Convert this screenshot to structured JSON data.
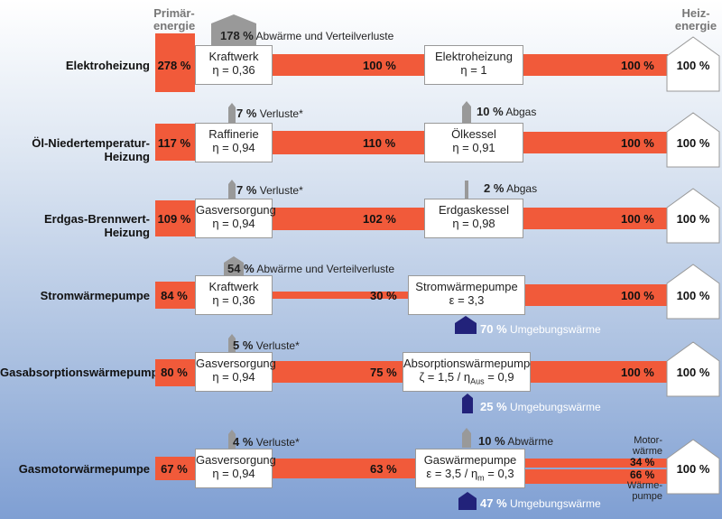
{
  "headers": {
    "primary": [
      "Primär-",
      "energie"
    ],
    "heat": [
      "Heiz-",
      "energie"
    ]
  },
  "colors": {
    "flow": "#f15a3a",
    "loss": "#999999",
    "ambient": "#22227a"
  },
  "rows": [
    {
      "label": "Elektroheizung",
      "primary_pct": "278 %",
      "box1": [
        "Kraftwerk",
        "η = 0,36"
      ],
      "mid_pct": "100 %",
      "loss1": {
        "value": "178 %",
        "text": "Abwärme und Verteilverluste"
      },
      "box2": [
        "Elektroheizung",
        "η = 1"
      ],
      "end_pct": "100 %",
      "house_pct": "100 %"
    },
    {
      "label": "Öl-Niedertemperatur-Heizung",
      "primary_pct": "117 %",
      "box1": [
        "Raffinerie",
        "η = 0,94"
      ],
      "mid_pct": "110 %",
      "loss1": {
        "value": "7 %",
        "text": "Verluste*"
      },
      "loss2": {
        "value": "10 %",
        "text": "Abgas"
      },
      "box2": [
        "Ölkessel",
        "η = 0,91"
      ],
      "end_pct": "100 %",
      "house_pct": "100 %"
    },
    {
      "label": "Erdgas-Brennwert-Heizung",
      "primary_pct": "109 %",
      "box1": [
        "Gasversorgung",
        "η = 0,94"
      ],
      "mid_pct": "102 %",
      "loss1": {
        "value": "7 %",
        "text": "Verluste*"
      },
      "loss2": {
        "value": "2 %",
        "text": "Abgas"
      },
      "box2": [
        "Erdgaskessel",
        "η = 0,98"
      ],
      "end_pct": "100 %",
      "house_pct": "100 %"
    },
    {
      "label": "Stromwärmepumpe",
      "primary_pct": "84 %",
      "box1": [
        "Kraftwerk",
        "η = 0,36"
      ],
      "mid_pct": "30 %",
      "loss1": {
        "value": "54 %",
        "text": "Abwärme und Verteilverluste"
      },
      "box2": [
        "Stromwärmepumpe",
        "ε = 3,3"
      ],
      "ambient": {
        "value": "70 %",
        "text": "Umgebungswärme"
      },
      "end_pct": "100 %",
      "house_pct": "100 %"
    },
    {
      "label": "Gasabsorptionswärmepumpe",
      "primary_pct": "80 %",
      "box1": [
        "Gasversorgung",
        "η = 0,94"
      ],
      "mid_pct": "75 %",
      "loss1": {
        "value": "5 %",
        "text": "Verluste*"
      },
      "box2_line1": "Absorptionswärmepumpe",
      "box2_line2": {
        "a": "ζ = 1,5 / η",
        "sub": "Aus",
        "b": " = 0,9"
      },
      "ambient": {
        "value": "25 %",
        "text": "Umgebungswärme"
      },
      "end_pct": "100 %",
      "house_pct": "100 %"
    },
    {
      "label": "Gasmotorwärmepumpe",
      "primary_pct": "67 %",
      "box1": [
        "Gasversorgung",
        "η = 0,94"
      ],
      "mid_pct": "63 %",
      "loss1": {
        "value": "4 %",
        "text": "Verluste*"
      },
      "loss2": {
        "value": "10 %",
        "text": "Abwärme"
      },
      "box2_line1": "Gaswärmepumpe",
      "box2_line2": {
        "a": "ε = 3,5 / η",
        "sub": "m",
        "b": " = 0,3"
      },
      "ambient": {
        "value": "47 %",
        "text": "Umgebungswärme"
      },
      "split_top_label": [
        "Motor-",
        "wärme"
      ],
      "split_top_pct": "34 %",
      "split_bottom_pct": "66 %",
      "split_bottom_label": [
        "Wärme-",
        "pumpe"
      ],
      "house_pct": "100 %"
    }
  ]
}
